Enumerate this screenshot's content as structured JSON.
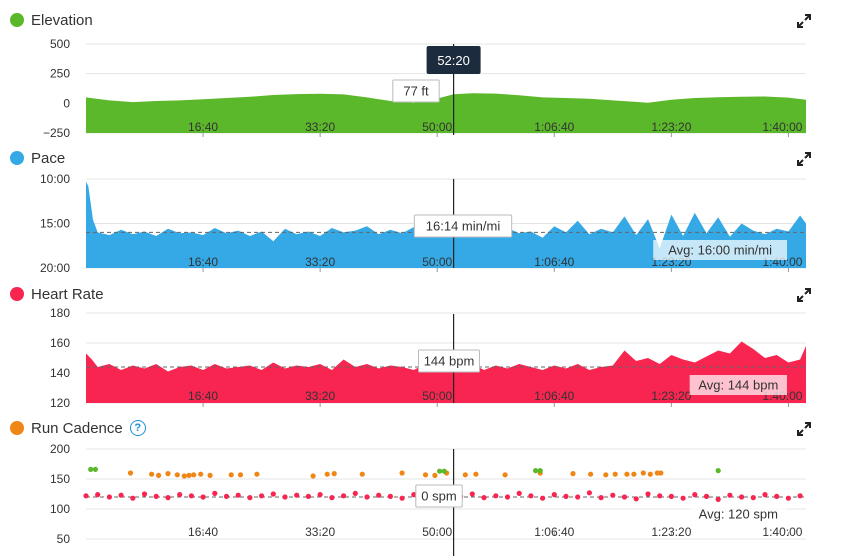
{
  "cursor": {
    "time_label": "52:20",
    "time_seconds": 3140
  },
  "x_axis": {
    "min": 0,
    "max": 6150,
    "ticks": [
      1000,
      2000,
      3000,
      4000,
      5000,
      6000
    ],
    "tick_labels": [
      "16:40",
      "33:20",
      "50:00",
      "1:06:40",
      "1:23:20",
      "1:40:00"
    ]
  },
  "panels": {
    "elevation": {
      "title": "Elevation",
      "color": "#5cb82b",
      "tooltip": "77 ft",
      "y_ticks": [
        "500",
        "250",
        "0",
        "−250"
      ]
    },
    "pace": {
      "title": "Pace",
      "color": "#35a8e6",
      "tooltip": "16:14 min/mi",
      "avg_label": "Avg: 16:00 min/mi",
      "y_ticks": [
        "10:00",
        "15:00",
        "20:00"
      ]
    },
    "heart_rate": {
      "title": "Heart Rate",
      "color": "#f72550",
      "tooltip": "144 bpm",
      "avg_label": "Avg: 144 bpm",
      "y_ticks": [
        "180",
        "160",
        "140",
        "120"
      ]
    },
    "cadence": {
      "title": "Run Cadence",
      "color": "#f08616",
      "tooltip": "0 spm",
      "avg_label": "Avg: 120 spm",
      "y_ticks": [
        "200",
        "150",
        "100",
        "50"
      ],
      "icon": "help-icon"
    }
  },
  "chart_data": [
    {
      "type": "area",
      "title": "Elevation",
      "ylabel": "",
      "ylim": [
        -250,
        500
      ],
      "unit": "ft",
      "x": [
        0,
        200,
        400,
        600,
        800,
        1000,
        1200,
        1400,
        1600,
        1800,
        2000,
        2200,
        2400,
        2600,
        2800,
        3000,
        3140,
        3300,
        3500,
        3700,
        3900,
        4100,
        4300,
        4500,
        4700,
        4800,
        5000,
        5200,
        5400,
        5600,
        5800,
        6000,
        6150
      ],
      "y": [
        50,
        25,
        10,
        20,
        25,
        35,
        45,
        55,
        70,
        78,
        80,
        75,
        50,
        20,
        5,
        40,
        77,
        85,
        82,
        68,
        50,
        45,
        38,
        25,
        12,
        5,
        30,
        45,
        52,
        55,
        58,
        48,
        30
      ]
    },
    {
      "type": "area",
      "title": "Pace",
      "ylabel": "",
      "ylim": [
        20,
        10
      ],
      "unit": "min/mi",
      "avg": 16.0,
      "x": [
        0,
        20,
        60,
        100,
        200,
        300,
        400,
        500,
        600,
        700,
        800,
        900,
        1000,
        1100,
        1200,
        1300,
        1400,
        1500,
        1600,
        1700,
        1800,
        1900,
        2000,
        2100,
        2200,
        2300,
        2400,
        2500,
        2600,
        2700,
        2800,
        2900,
        3000,
        3100,
        3140,
        3200,
        3300,
        3400,
        3500,
        3600,
        3700,
        3800,
        3900,
        4000,
        4100,
        4200,
        4300,
        4400,
        4500,
        4600,
        4700,
        4800,
        4900,
        5000,
        5100,
        5200,
        5300,
        5400,
        5500,
        5600,
        5700,
        5800,
        5900,
        6000,
        6100,
        6150
      ],
      "y": [
        10.3,
        10.8,
        14.6,
        16.0,
        16.3,
        15.7,
        16.2,
        15.9,
        16.4,
        15.6,
        16.1,
        16.0,
        16.3,
        15.5,
        16.1,
        15.8,
        16.4,
        15.9,
        17.0,
        15.6,
        16.2,
        15.9,
        16.4,
        15.5,
        16.0,
        15.8,
        15.3,
        16.2,
        15.7,
        16.1,
        15.4,
        16.3,
        15.9,
        16.2,
        16.2,
        15.7,
        16.0,
        15.2,
        16.3,
        15.5,
        16.1,
        15.9,
        16.6,
        15.3,
        16.0,
        14.7,
        16.2,
        15.6,
        16.0,
        14.2,
        16.3,
        14.5,
        17.8,
        14.0,
        16.4,
        13.8,
        16.1,
        14.3,
        16.5,
        15.0,
        15.8,
        16.2,
        15.6,
        15.9,
        14.1,
        15.0
      ]
    },
    {
      "type": "area",
      "title": "Heart Rate",
      "ylabel": "",
      "ylim": [
        120,
        180
      ],
      "unit": "bpm",
      "avg": 144,
      "x": [
        0,
        50,
        100,
        200,
        300,
        400,
        500,
        600,
        700,
        800,
        900,
        1000,
        1100,
        1200,
        1300,
        1400,
        1500,
        1600,
        1700,
        1800,
        1900,
        2000,
        2100,
        2200,
        2300,
        2400,
        2500,
        2600,
        2700,
        2800,
        2900,
        3000,
        3100,
        3140,
        3200,
        3300,
        3400,
        3500,
        3600,
        3700,
        3800,
        3900,
        4000,
        4100,
        4200,
        4300,
        4400,
        4500,
        4600,
        4700,
        4800,
        4900,
        5000,
        5100,
        5200,
        5300,
        5400,
        5500,
        5600,
        5700,
        5800,
        5900,
        6000,
        6100,
        6150
      ],
      "y": [
        153,
        149,
        144,
        146,
        142,
        145,
        143,
        146,
        141,
        144,
        145,
        142,
        146,
        143,
        144,
        145,
        142,
        147,
        143,
        145,
        144,
        146,
        142,
        149,
        144,
        146,
        143,
        145,
        144,
        142,
        146,
        143,
        141,
        144,
        144,
        146,
        142,
        145,
        143,
        146,
        144,
        142,
        145,
        143,
        146,
        142,
        144,
        145,
        155,
        148,
        150,
        146,
        152,
        149,
        147,
        151,
        155,
        153,
        161,
        156,
        150,
        152,
        147,
        149,
        158
      ]
    },
    {
      "type": "scatter",
      "title": "Run Cadence",
      "ylabel": "",
      "ylim": [
        50,
        200
      ],
      "unit": "spm",
      "avg": 120,
      "series": [
        {
          "color": "#f72550",
          "x": [
            0,
            100,
            200,
            300,
            400,
            500,
            600,
            700,
            800,
            900,
            1000,
            1100,
            1200,
            1300,
            1400,
            1500,
            1600,
            1700,
            1800,
            1900,
            2000,
            2100,
            2200,
            2300,
            2400,
            2500,
            2600,
            2700,
            2800,
            2900,
            3000,
            3100,
            3200,
            3300,
            3400,
            3500,
            3600,
            3700,
            3800,
            3900,
            4000,
            4100,
            4200,
            4300,
            4400,
            4500,
            4600,
            4700,
            4800,
            4900,
            5000,
            5100,
            5200,
            5300,
            5400,
            5500,
            5600,
            5700,
            5800,
            5900,
            6000,
            6100
          ],
          "y": [
            122,
            124,
            120,
            123,
            118,
            125,
            121,
            119,
            124,
            122,
            120,
            126,
            121,
            123,
            119,
            122,
            125,
            120,
            123,
            121,
            124,
            119,
            122,
            126,
            120,
            123,
            121,
            118,
            124,
            122,
            120,
            123,
            121,
            125,
            119,
            122,
            120,
            126,
            122,
            118,
            124,
            121,
            120,
            127,
            119,
            123,
            120,
            117,
            125,
            122,
            121,
            118,
            124,
            121,
            116,
            123,
            120,
            119,
            124,
            121,
            118,
            122
          ]
        },
        {
          "color": "#f08616",
          "x": [
            380,
            560,
            620,
            700,
            780,
            840,
            880,
            920,
            980,
            1060,
            1240,
            1320,
            1460,
            1940,
            2060,
            2120,
            2360,
            2700,
            2900,
            2980,
            3080,
            3240,
            3330,
            3580,
            3880,
            4160,
            4310,
            4440,
            4520,
            4620,
            4680,
            4760,
            4820,
            4880,
            4910
          ],
          "y": [
            160,
            158,
            156,
            159,
            157,
            155,
            156,
            157,
            158,
            156,
            157,
            157,
            158,
            155,
            158,
            159,
            158,
            160,
            157,
            156,
            160,
            157,
            158,
            157,
            160,
            159,
            158,
            157,
            158,
            158,
            158,
            160,
            158,
            160,
            160
          ]
        },
        {
          "color": "#5cb82b",
          "x": [
            40,
            80,
            3020,
            3060,
            3840,
            3880,
            5400
          ],
          "y": [
            166,
            166,
            163,
            163,
            164,
            164,
            164
          ]
        }
      ]
    }
  ]
}
